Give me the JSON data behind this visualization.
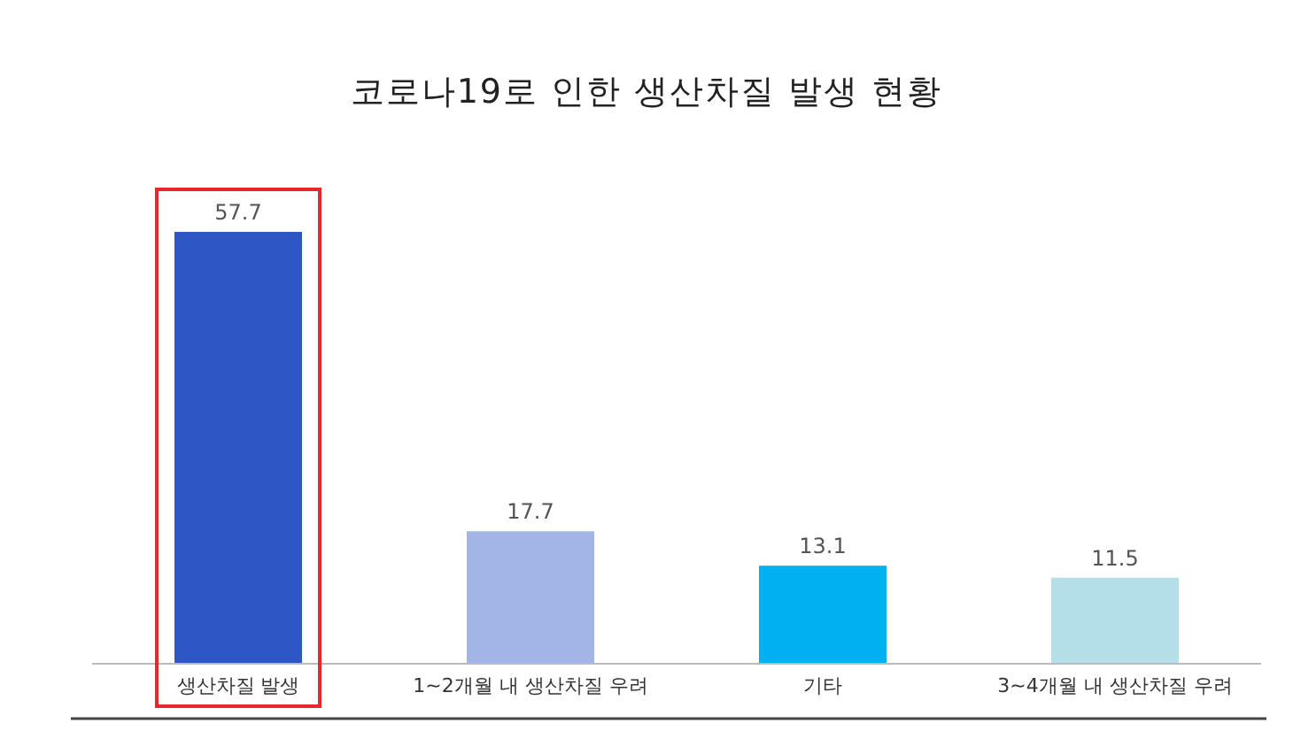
{
  "chart_data": {
    "type": "bar",
    "title": "코로나19로 인한 생산차질 발생 현황",
    "categories": [
      "생산차질 발생",
      "1~2개월 내 생산차질 우려",
      "기타",
      "3~4개월 내 생산차질 우려"
    ],
    "values": [
      57.7,
      17.7,
      13.1,
      11.5
    ],
    "colors": [
      "#2e56c4",
      "#a2b5e6",
      "#00b0f0",
      "#b5dfe8"
    ],
    "data_labels": true
  }
}
